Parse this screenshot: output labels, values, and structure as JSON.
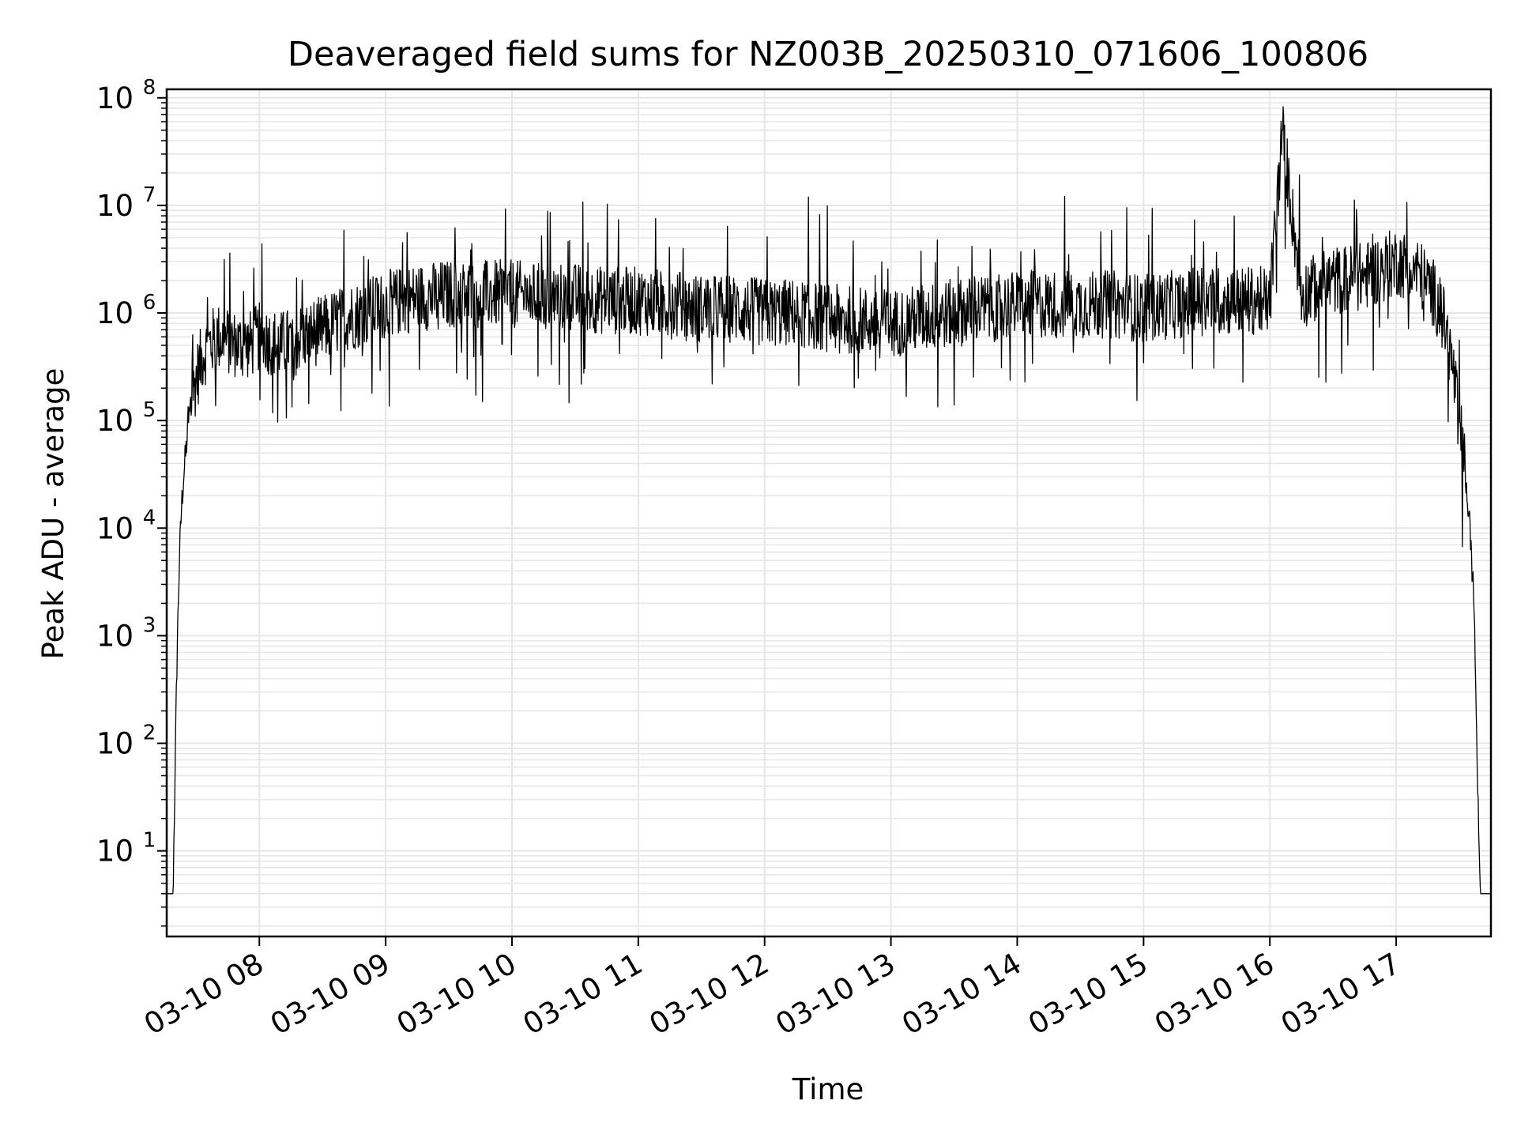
{
  "chart_data": {
    "type": "line",
    "title": "Deaveraged field sums for NZ003B_20250310_071606_100806",
    "xlabel": "Time",
    "ylabel": "Peak ADU - average",
    "xscale": "time",
    "yscale": "log",
    "xlim": [
      "2025-03-10 07:16",
      "2025-03-10 17:45"
    ],
    "ylim": [
      1.6,
      120000000
    ],
    "grid": true,
    "legend": "none",
    "line_color": "#000000",
    "grid_color": "#e6e6e6",
    "x_ticks": [
      {
        "value": "2025-03-10 08:00",
        "label": "03-10 08"
      },
      {
        "value": "2025-03-10 09:00",
        "label": "03-10 09"
      },
      {
        "value": "2025-03-10 10:00",
        "label": "03-10 10"
      },
      {
        "value": "2025-03-10 11:00",
        "label": "03-10 11"
      },
      {
        "value": "2025-03-10 12:00",
        "label": "03-10 12"
      },
      {
        "value": "2025-03-10 13:00",
        "label": "03-10 13"
      },
      {
        "value": "2025-03-10 14:00",
        "label": "03-10 14"
      },
      {
        "value": "2025-03-10 15:00",
        "label": "03-10 15"
      },
      {
        "value": "2025-03-10 16:00",
        "label": "03-10 16"
      },
      {
        "value": "2025-03-10 17:00",
        "label": "03-10 17"
      }
    ],
    "y_ticks": [
      {
        "value": 10,
        "base": "10",
        "exp": "1"
      },
      {
        "value": 100,
        "base": "10",
        "exp": "2"
      },
      {
        "value": 1000,
        "base": "10",
        "exp": "3"
      },
      {
        "value": 10000,
        "base": "10",
        "exp": "4"
      },
      {
        "value": 100000,
        "base": "10",
        "exp": "5"
      },
      {
        "value": 1000000,
        "base": "10",
        "exp": "6"
      },
      {
        "value": 10000000,
        "base": "10",
        "exp": "7"
      },
      {
        "value": 100000000,
        "base": "10",
        "exp": "8"
      }
    ],
    "series": [
      {
        "x": [
          "2025-03-10 07:16",
          "2025-03-10 07:19",
          "2025-03-10 07:20",
          "2025-03-10 07:21",
          "2025-03-10 07:22",
          "2025-03-10 07:23",
          "2025-03-10 07:24",
          "2025-03-10 07:26",
          "2025-03-10 07:28",
          "2025-03-10 07:30",
          "2025-03-10 07:33",
          "2025-03-10 07:36",
          "2025-03-10 07:40",
          "2025-03-10 07:45",
          "2025-03-10 07:50",
          "2025-03-10 07:55",
          "2025-03-10 08:00",
          "2025-03-10 08:10",
          "2025-03-10 08:20",
          "2025-03-10 08:30",
          "2025-03-10 08:40",
          "2025-03-10 08:50",
          "2025-03-10 09:00",
          "2025-03-10 09:15",
          "2025-03-10 09:30",
          "2025-03-10 09:45",
          "2025-03-10 10:00",
          "2025-03-10 10:15",
          "2025-03-10 10:30",
          "2025-03-10 10:45",
          "2025-03-10 11:00",
          "2025-03-10 11:15",
          "2025-03-10 11:30",
          "2025-03-10 11:45",
          "2025-03-10 12:00",
          "2025-03-10 12:15",
          "2025-03-10 12:30",
          "2025-03-10 12:45",
          "2025-03-10 13:00",
          "2025-03-10 13:15",
          "2025-03-10 13:30",
          "2025-03-10 13:45",
          "2025-03-10 14:00",
          "2025-03-10 14:15",
          "2025-03-10 14:30",
          "2025-03-10 14:45",
          "2025-03-10 15:00",
          "2025-03-10 15:15",
          "2025-03-10 15:30",
          "2025-03-10 15:45",
          "2025-03-10 16:00",
          "2025-03-10 16:06",
          "2025-03-10 16:15",
          "2025-03-10 16:30",
          "2025-03-10 16:45",
          "2025-03-10 17:00",
          "2025-03-10 17:10",
          "2025-03-10 17:18",
          "2025-03-10 17:23",
          "2025-03-10 17:27",
          "2025-03-10 17:30",
          "2025-03-10 17:33",
          "2025-03-10 17:35",
          "2025-03-10 17:37",
          "2025-03-10 17:38",
          "2025-03-10 17:39",
          "2025-03-10 17:40",
          "2025-03-10 17:45"
        ],
        "y": [
          4,
          4,
          60,
          800,
          5000,
          15000,
          30000,
          80000,
          150000,
          250000,
          400000,
          500000,
          600000,
          550000,
          500000,
          500000,
          600000,
          500000,
          600000,
          700000,
          900000,
          1000000,
          1200000,
          1400000,
          1500000,
          1500000,
          1500000,
          1400000,
          1400000,
          1300000,
          1300000,
          1200000,
          1100000,
          1100000,
          1000000,
          1000000,
          900000,
          850000,
          800000,
          900000,
          1000000,
          1100000,
          1200000,
          1200000,
          1200000,
          1200000,
          1100000,
          1200000,
          1300000,
          1300000,
          1300000,
          50000000,
          1500000,
          2000000,
          2200000,
          3000000,
          2500000,
          1500000,
          800000,
          300000,
          100000,
          30000,
          10000,
          2000,
          200,
          20,
          4,
          4
        ]
      }
    ],
    "annotations": {
      "peak_value": 50000000,
      "peak_time": "2025-03-10 16:06"
    }
  }
}
